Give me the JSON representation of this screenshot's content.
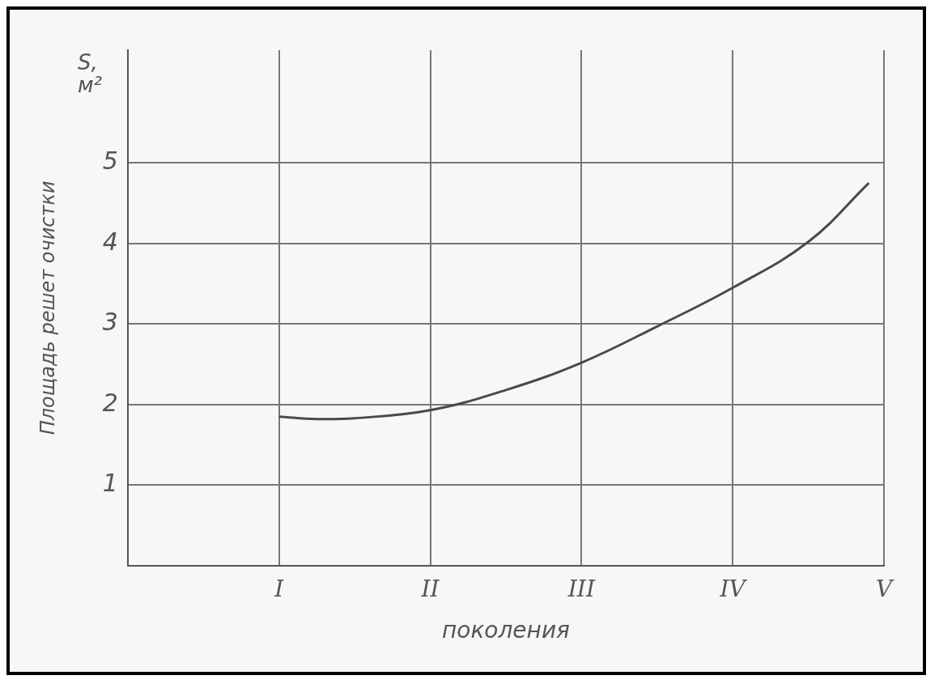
{
  "chart_data": {
    "type": "line",
    "y_label": "Площадь решет очистки",
    "y_unit": "S, м²",
    "x_label": "поколения",
    "x": [
      1,
      1.25,
      1.5,
      2,
      2.5,
      3,
      3.5,
      4,
      4.5,
      4.9
    ],
    "values": [
      1.85,
      1.82,
      1.83,
      1.93,
      2.18,
      2.52,
      2.97,
      3.45,
      4.02,
      4.75
    ],
    "color": "#4a4a4a",
    "xlim": [
      0,
      5
    ],
    "xticks": [
      {
        "value": 1,
        "label": "I"
      },
      {
        "value": 2,
        "label": "II"
      },
      {
        "value": 3,
        "label": "III"
      },
      {
        "value": 4,
        "label": "IV"
      },
      {
        "value": 5,
        "label": "V"
      }
    ],
    "ylim": [
      0,
      6.4
    ],
    "yticks": [
      1,
      2,
      3,
      4,
      5
    ],
    "grid": true
  }
}
